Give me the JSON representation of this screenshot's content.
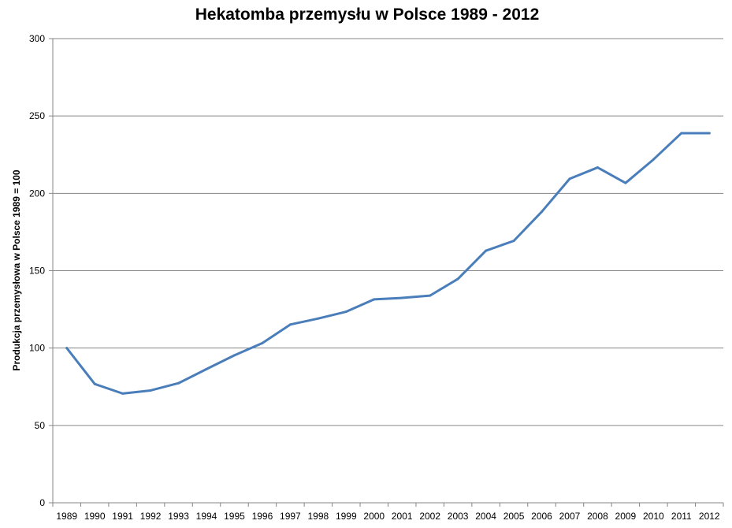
{
  "chart_data": {
    "type": "line",
    "title": "Hekatomba przemysłu w Polsce 1989 - 2012",
    "xlabel": "",
    "ylabel": "Produkcja przemysłowa w Polsce 1989 = 100",
    "categories": [
      "1989",
      "1990",
      "1991",
      "1992",
      "1993",
      "1994",
      "1995",
      "1996",
      "1997",
      "1998",
      "1999",
      "2000",
      "2001",
      "2002",
      "2003",
      "2004",
      "2005",
      "2006",
      "2007",
      "2008",
      "2009",
      "2010",
      "2011",
      "2012"
    ],
    "series": [
      {
        "values": [
          100,
          76.8,
          70.6,
          72.6,
          77.3,
          86.4,
          95.3,
          103.2,
          115.2,
          119.1,
          123.5,
          131.5,
          132.4,
          133.9,
          144.7,
          162.9,
          169.3,
          188.1,
          209.4,
          216.7,
          206.7,
          221.9,
          238.9,
          238.9
        ],
        "color": "#4a7ebb"
      }
    ],
    "ylim": [
      0,
      300
    ],
    "yticks": [
      0,
      50,
      100,
      150,
      200,
      250,
      300
    ],
    "grid": true,
    "legend": "none",
    "gridline_color": "#868686",
    "axis_color": "#868686"
  }
}
